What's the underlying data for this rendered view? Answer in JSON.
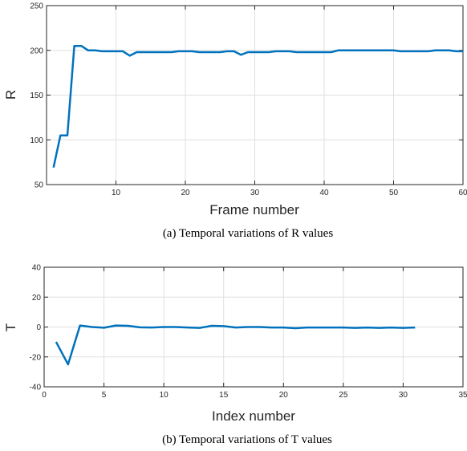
{
  "chart_data": [
    {
      "type": "line",
      "xlabel": "Frame number",
      "ylabel": "R",
      "caption": "(a) Temporal variations of R values",
      "xlim": [
        0,
        60
      ],
      "ylim": [
        50,
        250
      ],
      "xticks": [
        10,
        20,
        30,
        40,
        50,
        60
      ],
      "yticks": [
        50,
        100,
        150,
        200,
        250
      ],
      "grid": true,
      "color": "#0072BD",
      "x": [
        1,
        2,
        3,
        4,
        5,
        6,
        7,
        8,
        9,
        10,
        11,
        12,
        13,
        14,
        15,
        16,
        17,
        18,
        19,
        20,
        21,
        22,
        23,
        24,
        25,
        26,
        27,
        28,
        29,
        30,
        31,
        32,
        33,
        34,
        35,
        36,
        37,
        38,
        39,
        40,
        41,
        42,
        43,
        44,
        45,
        46,
        47,
        48,
        49,
        50,
        51,
        52,
        53,
        54,
        55,
        56,
        57,
        58,
        59,
        60
      ],
      "y": [
        69,
        105,
        105,
        205,
        205,
        200,
        200,
        199,
        199,
        199,
        199,
        194,
        198,
        198,
        198,
        198,
        198,
        198,
        199,
        199,
        199,
        198,
        198,
        198,
        198,
        199,
        199,
        195,
        198,
        198,
        198,
        198,
        199,
        199,
        199,
        198,
        198,
        198,
        198,
        198,
        198,
        200,
        200,
        200,
        200,
        200,
        200,
        200,
        200,
        200,
        199,
        199,
        199,
        199,
        199,
        200,
        200,
        200,
        199,
        199
      ]
    },
    {
      "type": "line",
      "xlabel": "Index number",
      "ylabel": "T",
      "caption": "(b) Temporal variations of T values",
      "xlim": [
        0,
        35
      ],
      "ylim": [
        -40,
        40
      ],
      "xticks": [
        0,
        5,
        10,
        15,
        20,
        25,
        30,
        35
      ],
      "yticks": [
        -40,
        -20,
        0,
        20,
        40
      ],
      "grid": true,
      "color": "#0072BD",
      "x": [
        1,
        2,
        3,
        4,
        5,
        6,
        7,
        8,
        9,
        10,
        11,
        12,
        13,
        14,
        15,
        16,
        17,
        18,
        19,
        20,
        21,
        22,
        23,
        24,
        25,
        26,
        27,
        28,
        29,
        30,
        31
      ],
      "y": [
        -10,
        -25,
        1,
        0,
        -0.5,
        1,
        0.8,
        -0.2,
        -0.3,
        0,
        0,
        -0.3,
        -0.6,
        0.8,
        0.6,
        -0.3,
        0,
        0,
        -0.3,
        -0.3,
        -0.8,
        -0.3,
        -0.3,
        -0.3,
        -0.3,
        -0.6,
        -0.3,
        -0.6,
        -0.3,
        -0.6,
        -0.3
      ]
    }
  ]
}
